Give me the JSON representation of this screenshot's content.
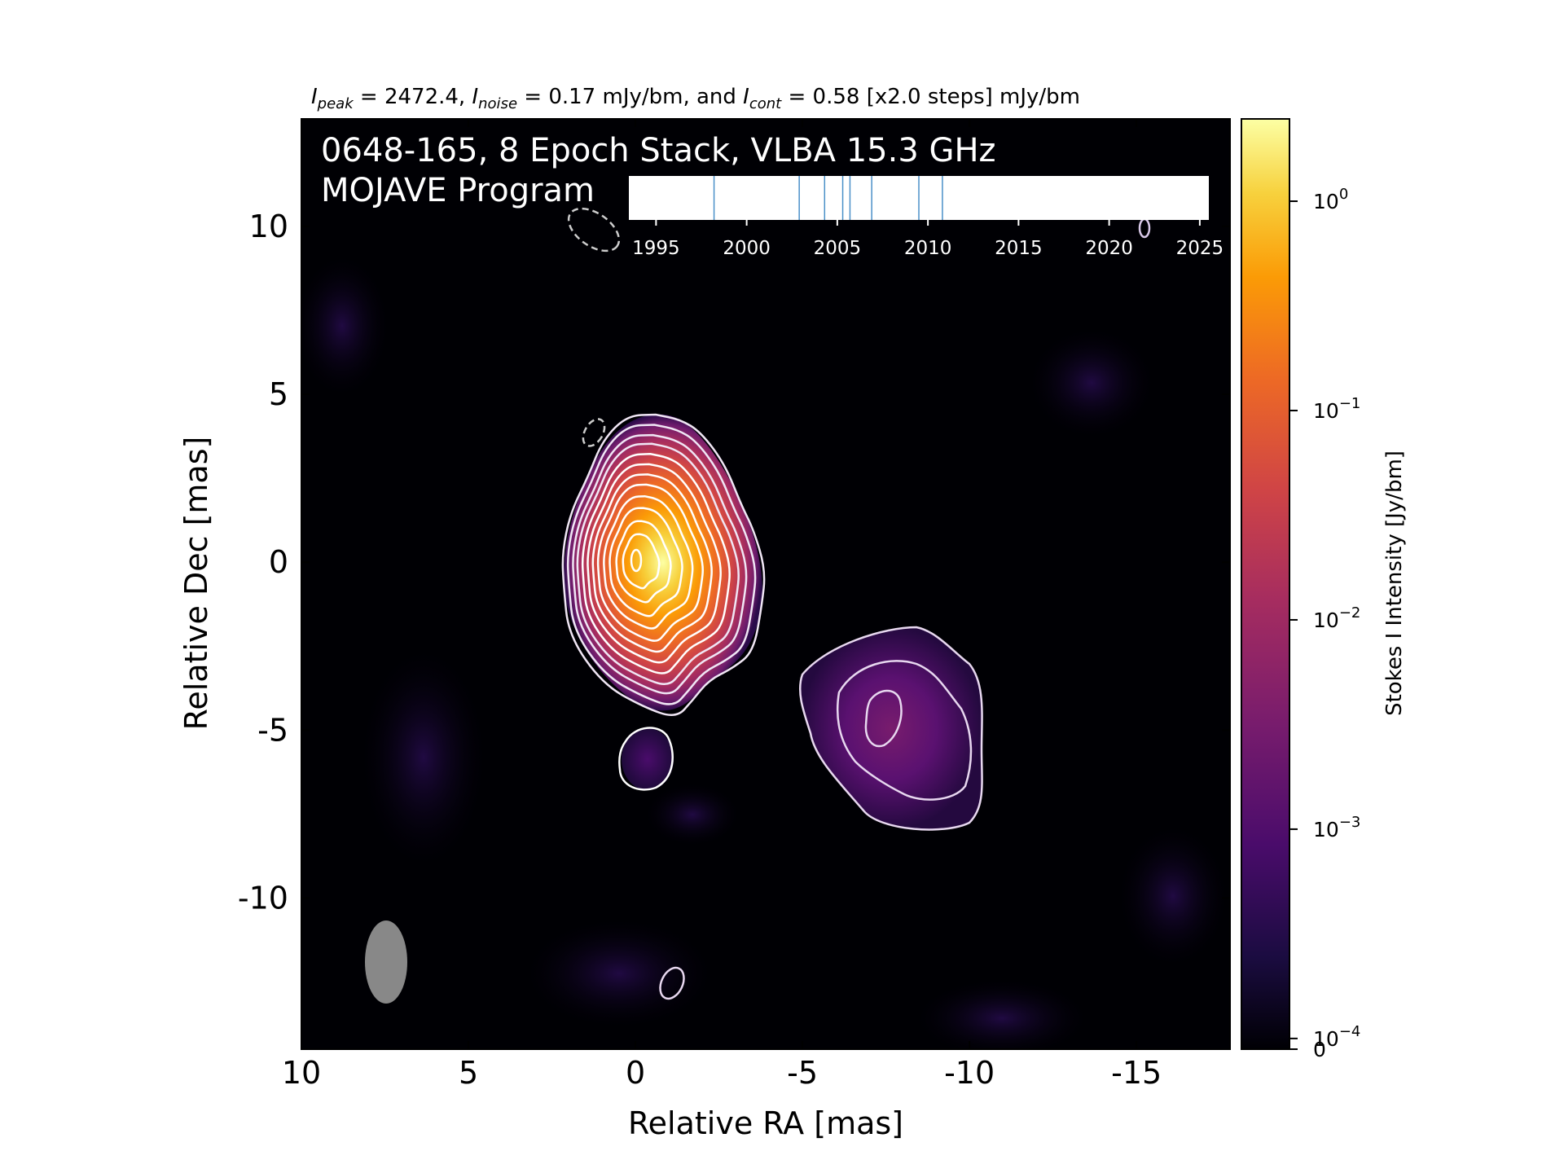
{
  "header": {
    "i_peak_label": "I",
    "i_peak_sub": "peak",
    "i_peak_value": " = 2472.4, ",
    "i_noise_label": "I",
    "i_noise_sub": "noise",
    "i_noise_value": " = 0.17 mJy/bm, and ",
    "i_cont_label": "I",
    "i_cont_sub": "cont",
    "i_cont_value": " = 0.58 [x2.0 steps] mJy/bm"
  },
  "overlay": {
    "title_line1": "0648-165, 8 Epoch Stack, VLBA 15.3 GHz",
    "title_line2": "MOJAVE Program"
  },
  "epoch_timeline": {
    "epochs": [
      1998.2,
      2002.9,
      2004.3,
      2005.3,
      2005.7,
      2006.9,
      2009.5,
      2010.8
    ],
    "xlim": [
      1993.5,
      2025.5
    ],
    "ticks": [
      "1995",
      "2000",
      "2005",
      "2010",
      "2015",
      "2020",
      "2025"
    ],
    "line_color": "#4a90c8"
  },
  "colorbar": {
    "label": "Stokes I Intensity [Jy/bm]",
    "scale": "log",
    "vmax": 2.4724,
    "ticks": [
      {
        "base": "10",
        "exp": "0",
        "value": 1
      },
      {
        "base": "10",
        "exp": "−1",
        "value": 0.1
      },
      {
        "base": "10",
        "exp": "−2",
        "value": 0.01
      },
      {
        "base": "10",
        "exp": "−3",
        "value": 0.001
      },
      {
        "base": "10",
        "exp": "−4",
        "value": 0.0001
      },
      {
        "base": "0",
        "exp": "",
        "value": 0
      }
    ],
    "colormap": "inferno"
  },
  "chart_data": {
    "type": "heatmap",
    "xlabel": "Relative RA [mas]",
    "ylabel": "Relative Dec [mas]",
    "xlim": [
      10,
      -17.8
    ],
    "ylim": [
      -14.5,
      13.2
    ],
    "x_ticks": [
      "10",
      "5",
      "0",
      "-5",
      "-10",
      "-15"
    ],
    "x_tick_values": [
      10,
      5,
      0,
      -5,
      -10,
      -15
    ],
    "y_ticks": [
      "10",
      "5",
      "0",
      "-5",
      "-10"
    ],
    "y_tick_values": [
      10,
      5,
      0,
      -5,
      -10
    ],
    "intensity_peak_mJy_per_beam": 2472.4,
    "noise_mJy_per_beam": 0.17,
    "lowest_contour_mJy_per_beam": 0.58,
    "contour_step_factor": 2.0,
    "features": {
      "core_center": [
        0,
        0
      ],
      "jet_component_center": [
        -7.5,
        -5.0
      ],
      "small_component_center": [
        0.2,
        -6.0
      ],
      "isolated_contour_center": [
        -1.0,
        -12.6
      ],
      "negative_contours": [
        [
          1.5,
          3.8
        ],
        [
          2.0,
          9.9
        ]
      ],
      "colorbar_edge_contour": [
        -15.2,
        10.0
      ]
    },
    "beam": {
      "center": [
        7.5,
        -12.2
      ],
      "major_mas": 2.5,
      "minor_mas": 1.25
    }
  }
}
